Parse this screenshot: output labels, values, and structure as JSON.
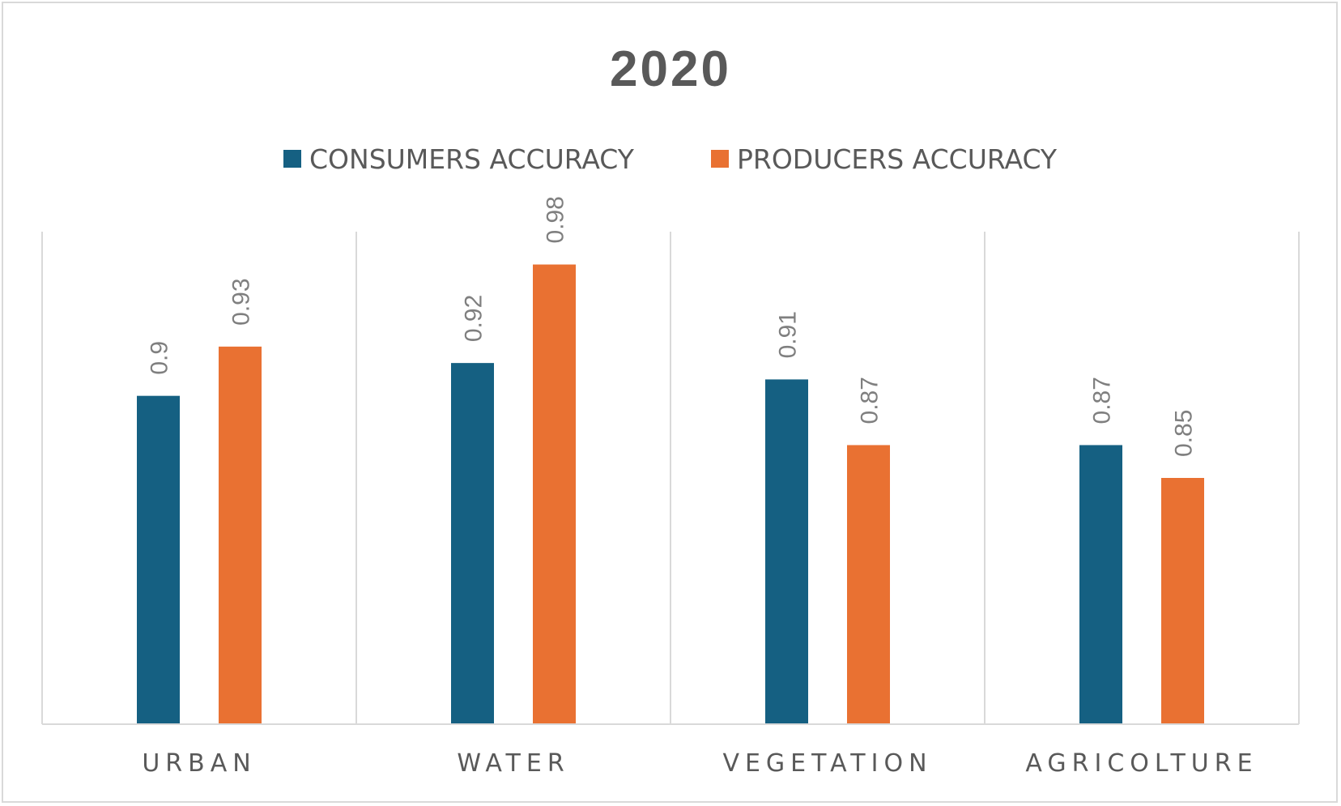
{
  "chart_data": {
    "type": "bar",
    "title": "2020",
    "categories": [
      "URBAN",
      "WATER",
      "VEGETATION",
      "AGRICOLTURE"
    ],
    "series": [
      {
        "name": "CONSUMERS ACCURACY",
        "color": "#156082",
        "values": [
          0.9,
          0.92,
          0.91,
          0.87
        ],
        "labels": [
          "0.9",
          "0.92",
          "0.91",
          "0.87"
        ]
      },
      {
        "name": "PRODUCERS ACCURACY",
        "color": "#E97132",
        "values": [
          0.93,
          0.98,
          0.87,
          0.85
        ],
        "labels": [
          "0.93",
          "0.98",
          "0.87",
          "0.85"
        ]
      }
    ],
    "ylim": [
      0.7,
      1.0
    ],
    "grid": "vertical-category-separators",
    "legend": "top-center",
    "xlabel": "",
    "ylabel": ""
  },
  "colors": {
    "axis": "#d9d9d9",
    "text": "#595959",
    "label": "#7f7f7f"
  }
}
